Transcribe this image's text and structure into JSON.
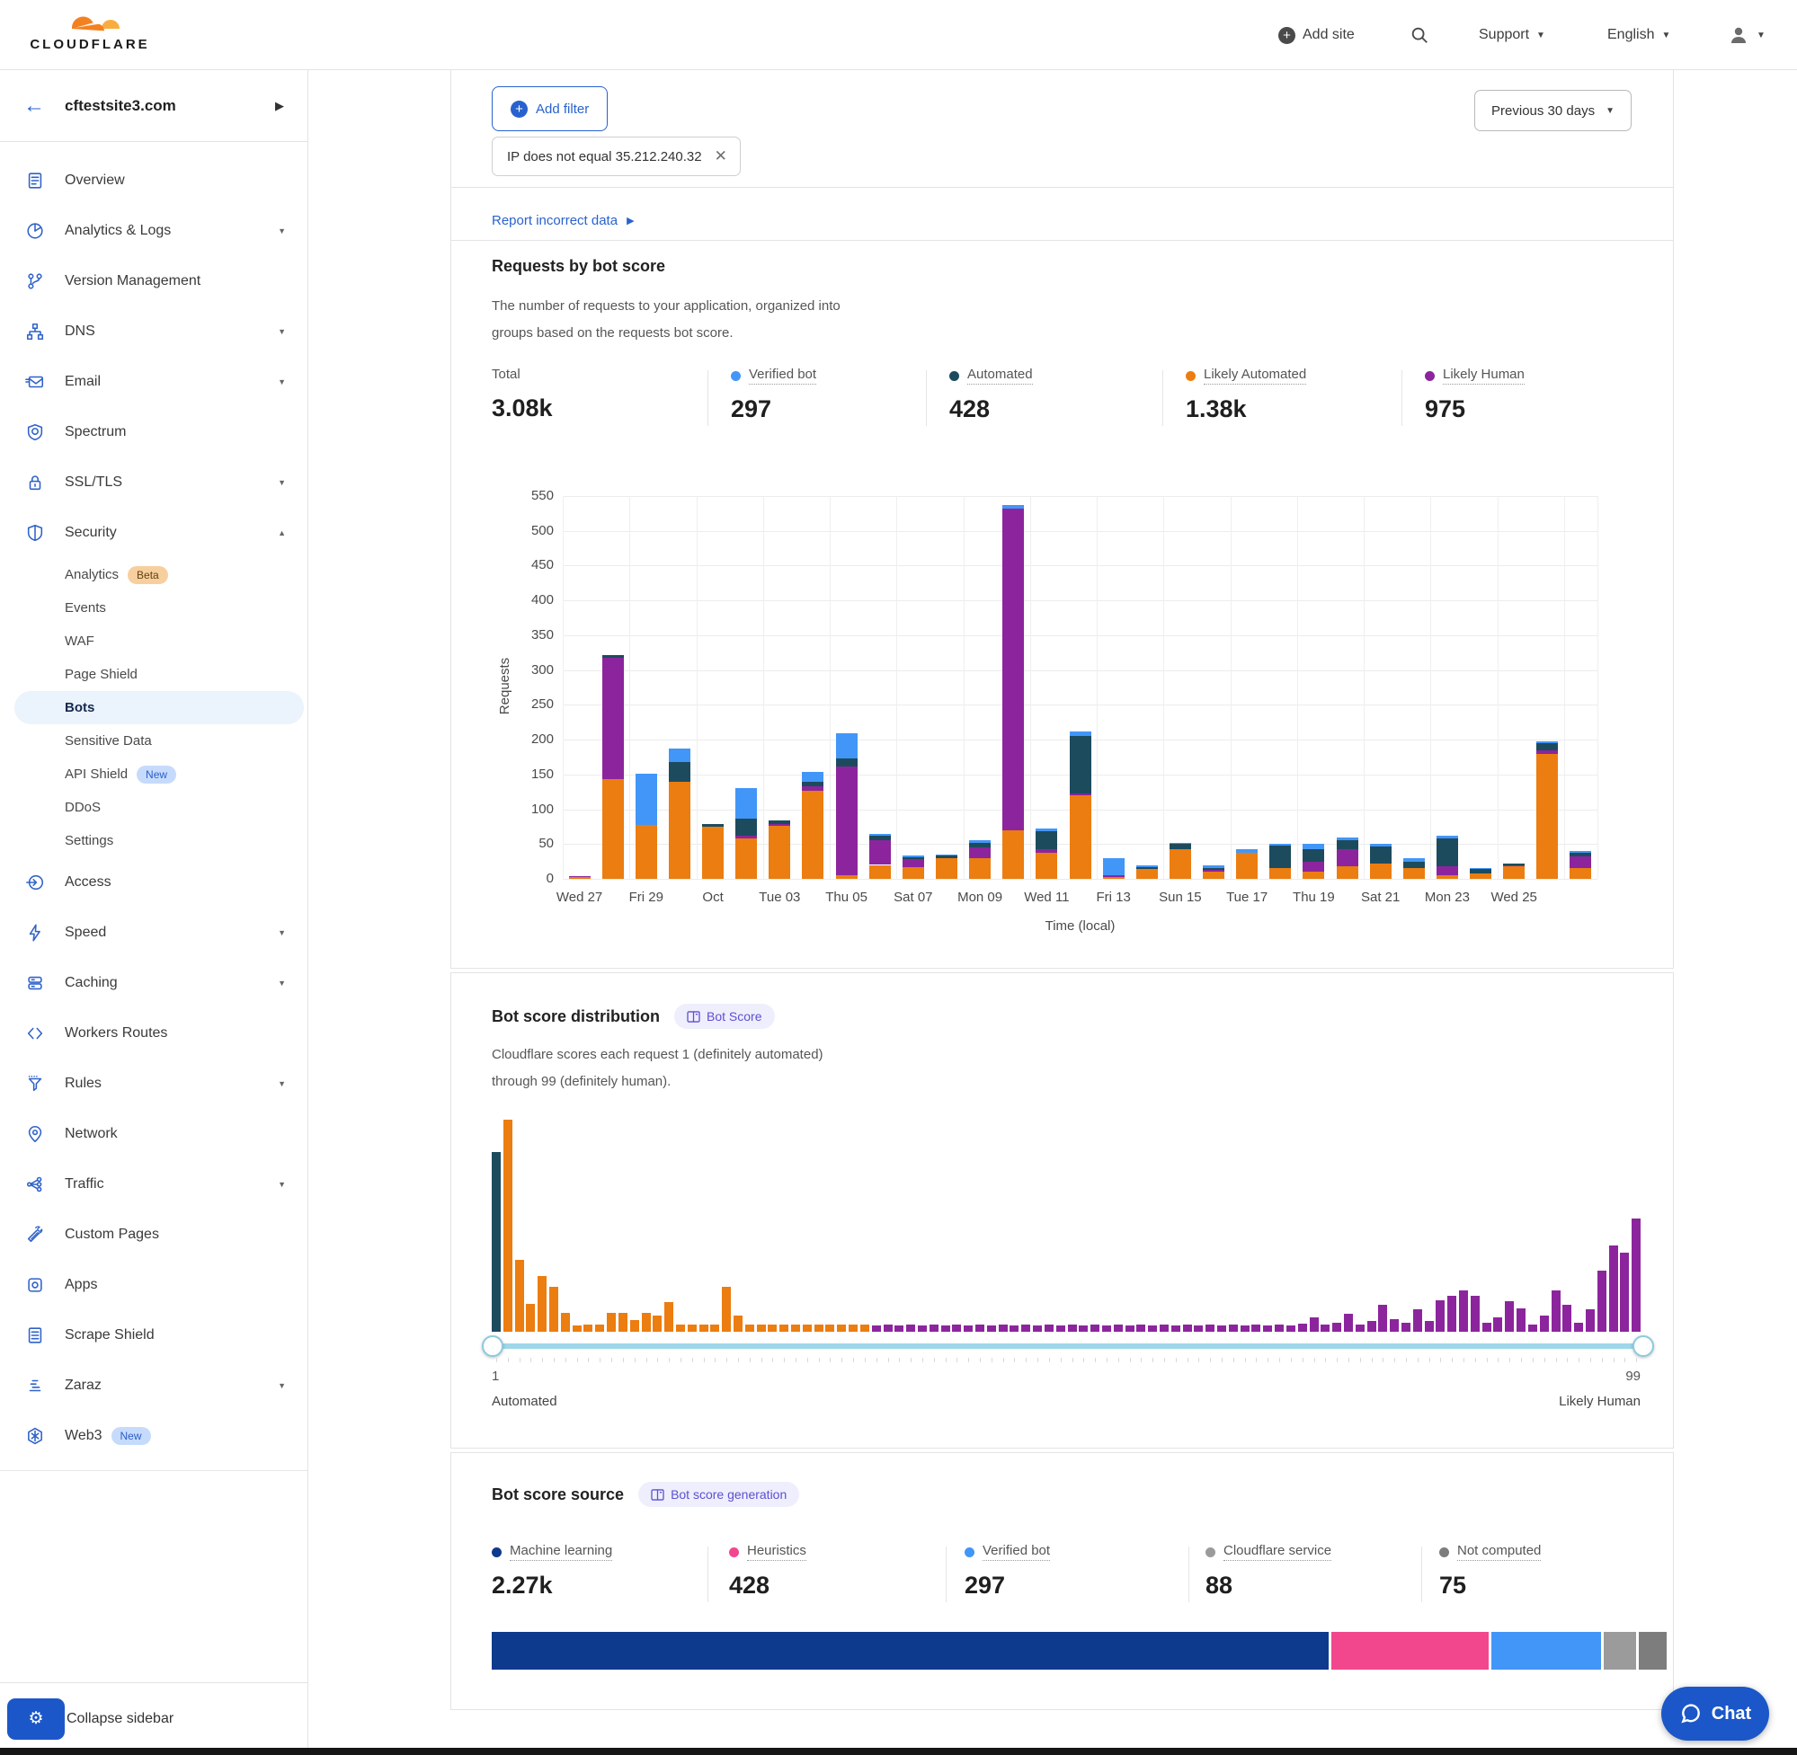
{
  "header": {
    "logo_text": "CLOUDFLARE",
    "add_site": "Add site",
    "support": "Support",
    "language": "English"
  },
  "sidebar": {
    "site": "cftestsite3.com",
    "collapse_label": "Collapse sidebar",
    "items": [
      {
        "label": "Overview",
        "icon": "overview",
        "type": "main"
      },
      {
        "label": "Analytics & Logs",
        "icon": "analytics",
        "type": "main",
        "caret": "down"
      },
      {
        "label": "Version Management",
        "icon": "version",
        "type": "main"
      },
      {
        "label": "DNS",
        "icon": "dns",
        "type": "main",
        "caret": "down"
      },
      {
        "label": "Email",
        "icon": "email",
        "type": "main",
        "caret": "down"
      },
      {
        "label": "Spectrum",
        "icon": "spectrum",
        "type": "main"
      },
      {
        "label": "SSL/TLS",
        "icon": "ssl",
        "type": "main",
        "caret": "down"
      },
      {
        "label": "Security",
        "icon": "security",
        "type": "main",
        "caret": "up"
      },
      {
        "label": "Analytics",
        "type": "sub",
        "badge": "Beta",
        "badge_style": "beta"
      },
      {
        "label": "Events",
        "type": "sub"
      },
      {
        "label": "WAF",
        "type": "sub"
      },
      {
        "label": "Page Shield",
        "type": "sub"
      },
      {
        "label": "Bots",
        "type": "sub",
        "active": true
      },
      {
        "label": "Sensitive Data",
        "type": "sub"
      },
      {
        "label": "API Shield",
        "type": "sub",
        "badge": "New",
        "badge_style": "new"
      },
      {
        "label": "DDoS",
        "type": "sub"
      },
      {
        "label": "Settings",
        "type": "sub"
      },
      {
        "label": "Access",
        "icon": "access",
        "type": "main"
      },
      {
        "label": "Speed",
        "icon": "speed",
        "type": "main",
        "caret": "down"
      },
      {
        "label": "Caching",
        "icon": "caching",
        "type": "main",
        "caret": "down"
      },
      {
        "label": "Workers Routes",
        "icon": "workers",
        "type": "main"
      },
      {
        "label": "Rules",
        "icon": "rules",
        "type": "main",
        "caret": "down"
      },
      {
        "label": "Network",
        "icon": "network",
        "type": "main"
      },
      {
        "label": "Traffic",
        "icon": "traffic",
        "type": "main",
        "caret": "down"
      },
      {
        "label": "Custom Pages",
        "icon": "custom-pages",
        "type": "main"
      },
      {
        "label": "Apps",
        "icon": "apps",
        "type": "main"
      },
      {
        "label": "Scrape Shield",
        "icon": "scrape-shield",
        "type": "main"
      },
      {
        "label": "Zaraz",
        "icon": "zaraz",
        "type": "main",
        "caret": "down"
      },
      {
        "label": "Web3",
        "icon": "web3",
        "type": "main",
        "badge": "New",
        "badge_style": "new",
        "divider_after": true
      }
    ]
  },
  "toolbar": {
    "add_filter": "Add filter",
    "filter_chip": "IP does not equal 35.212.240.32",
    "range": "Previous 30 days"
  },
  "report_link": "Report incorrect data",
  "requests_card": {
    "title": "Requests by bot score",
    "desc_line1": "The number of requests to your application, organized into",
    "desc_line2": "groups based on the requests bot score.",
    "stats": [
      {
        "label": "Total",
        "value": "3.08k",
        "color": null
      },
      {
        "label": "Verified bot",
        "value": "297",
        "color": "#4296F7"
      },
      {
        "label": "Automated",
        "value": "428",
        "color": "#1D4B5E"
      },
      {
        "label": "Likely Automated",
        "value": "1.38k",
        "color": "#EC7D10"
      },
      {
        "label": "Likely Human",
        "value": "975",
        "color": "#8C259D"
      }
    ]
  },
  "distribution_card": {
    "title": "Bot score distribution",
    "badge": "Bot Score",
    "desc_line1": "Cloudflare scores each request 1 (definitely automated)",
    "desc_line2": "through 99 (definitely human).",
    "range_min": "1",
    "range_max": "99",
    "range_min_label": "Automated",
    "range_max_label": "Likely Human"
  },
  "source_card": {
    "title": "Bot score source",
    "badge": "Bot score generation",
    "stats": [
      {
        "label": "Machine learning",
        "value": "2.27k",
        "color": "#0E3A8E"
      },
      {
        "label": "Heuristics",
        "value": "428",
        "color": "#F2478D"
      },
      {
        "label": "Verified bot",
        "value": "297",
        "color": "#4296F7"
      },
      {
        "label": "Cloudflare service",
        "value": "88",
        "color": "#9B9B9B"
      },
      {
        "label": "Not computed",
        "value": "75",
        "color": "#7D7D7D"
      }
    ],
    "segments": [
      {
        "name": "Machine learning",
        "color": "#0E3A8E",
        "value": 2270
      },
      {
        "name": "Heuristics",
        "color": "#F2478D",
        "value": 428
      },
      {
        "name": "Verified bot",
        "color": "#4296F7",
        "value": 297
      },
      {
        "name": "Cloudflare service",
        "color": "#9B9B9B",
        "value": 88
      },
      {
        "name": "Not computed",
        "color": "#7D7D7D",
        "value": 75
      }
    ]
  },
  "chat_label": "Chat",
  "chart_data": [
    {
      "id": "requests_by_bot_score",
      "type": "bar",
      "stacked": true,
      "title": "Requests by bot score",
      "xlabel": "Time (local)",
      "ylabel": "Requests",
      "ylim": [
        0,
        550
      ],
      "ytick_step": 50,
      "grid": true,
      "tick_labels": [
        "Wed 27",
        "Fri 29",
        "Oct",
        "Tue 03",
        "Thu 05",
        "Sat 07",
        "Mon 09",
        "Wed 11",
        "Fri 13",
        "Sun 15",
        "Tue 17",
        "Thu 19",
        "Sat 21",
        "Mon 23",
        "Wed 25"
      ],
      "label_every": 2,
      "series": [
        {
          "name": "Likely Automated",
          "color": "#EC7D10",
          "values": [
            3,
            143,
            78,
            140,
            75,
            58,
            76,
            127,
            5,
            20,
            17,
            30,
            30,
            70,
            38,
            120,
            3,
            14,
            42,
            10,
            38,
            15,
            10,
            18,
            22,
            15,
            5,
            8,
            18,
            180,
            15
          ]
        },
        {
          "name": "Likely Human",
          "color": "#8C259D",
          "values": [
            1,
            174,
            0,
            0,
            0,
            4,
            3,
            6,
            157,
            35,
            11,
            0,
            15,
            462,
            4,
            3,
            2,
            0,
            0,
            3,
            0,
            0,
            15,
            24,
            0,
            0,
            13,
            0,
            2,
            5,
            17
          ]
        },
        {
          "name": "Automated",
          "color": "#1D4B5E",
          "values": [
            0,
            5,
            0,
            28,
            4,
            25,
            5,
            7,
            11,
            7,
            3,
            3,
            7,
            0,
            26,
            82,
            0,
            3,
            8,
            2,
            0,
            33,
            17,
            13,
            25,
            10,
            40,
            6,
            2,
            10,
            6
          ]
        },
        {
          "name": "Verified bot",
          "color": "#4296F7",
          "values": [
            0,
            0,
            73,
            19,
            0,
            44,
            0,
            14,
            36,
            3,
            2,
            2,
            3,
            5,
            4,
            7,
            25,
            3,
            2,
            5,
            4,
            2,
            8,
            5,
            3,
            5,
            4,
            2,
            0,
            2,
            2
          ]
        }
      ]
    },
    {
      "id": "bot_score_distribution",
      "type": "histogram",
      "x_range": [
        1,
        99
      ],
      "colors": {
        "automated": "#1D4B5E",
        "likely_automated": "#EC7D10",
        "likely_human": "#8C259D"
      },
      "automated_until_index": 1,
      "likely_automated_until_index": 33,
      "heights": [
        200,
        236,
        80,
        31,
        62,
        50,
        21,
        7,
        8,
        8,
        21,
        21,
        13,
        21,
        18,
        33,
        8,
        8,
        8,
        8,
        50,
        18,
        8,
        8,
        8,
        8,
        8,
        8,
        8,
        8,
        8,
        8,
        8,
        7,
        8,
        7,
        8,
        7,
        8,
        7,
        8,
        7,
        8,
        7,
        8,
        7,
        8,
        7,
        8,
        7,
        8,
        7,
        8,
        7,
        8,
        7,
        8,
        7,
        8,
        7,
        8,
        7,
        8,
        7,
        8,
        7,
        8,
        7,
        8,
        7,
        9,
        16,
        8,
        10,
        20,
        8,
        12,
        30,
        14,
        10,
        25,
        12,
        35,
        40,
        46,
        40,
        10,
        16,
        34,
        26,
        8,
        18,
        46,
        30,
        10,
        25,
        68,
        96,
        88,
        126
      ]
    }
  ]
}
